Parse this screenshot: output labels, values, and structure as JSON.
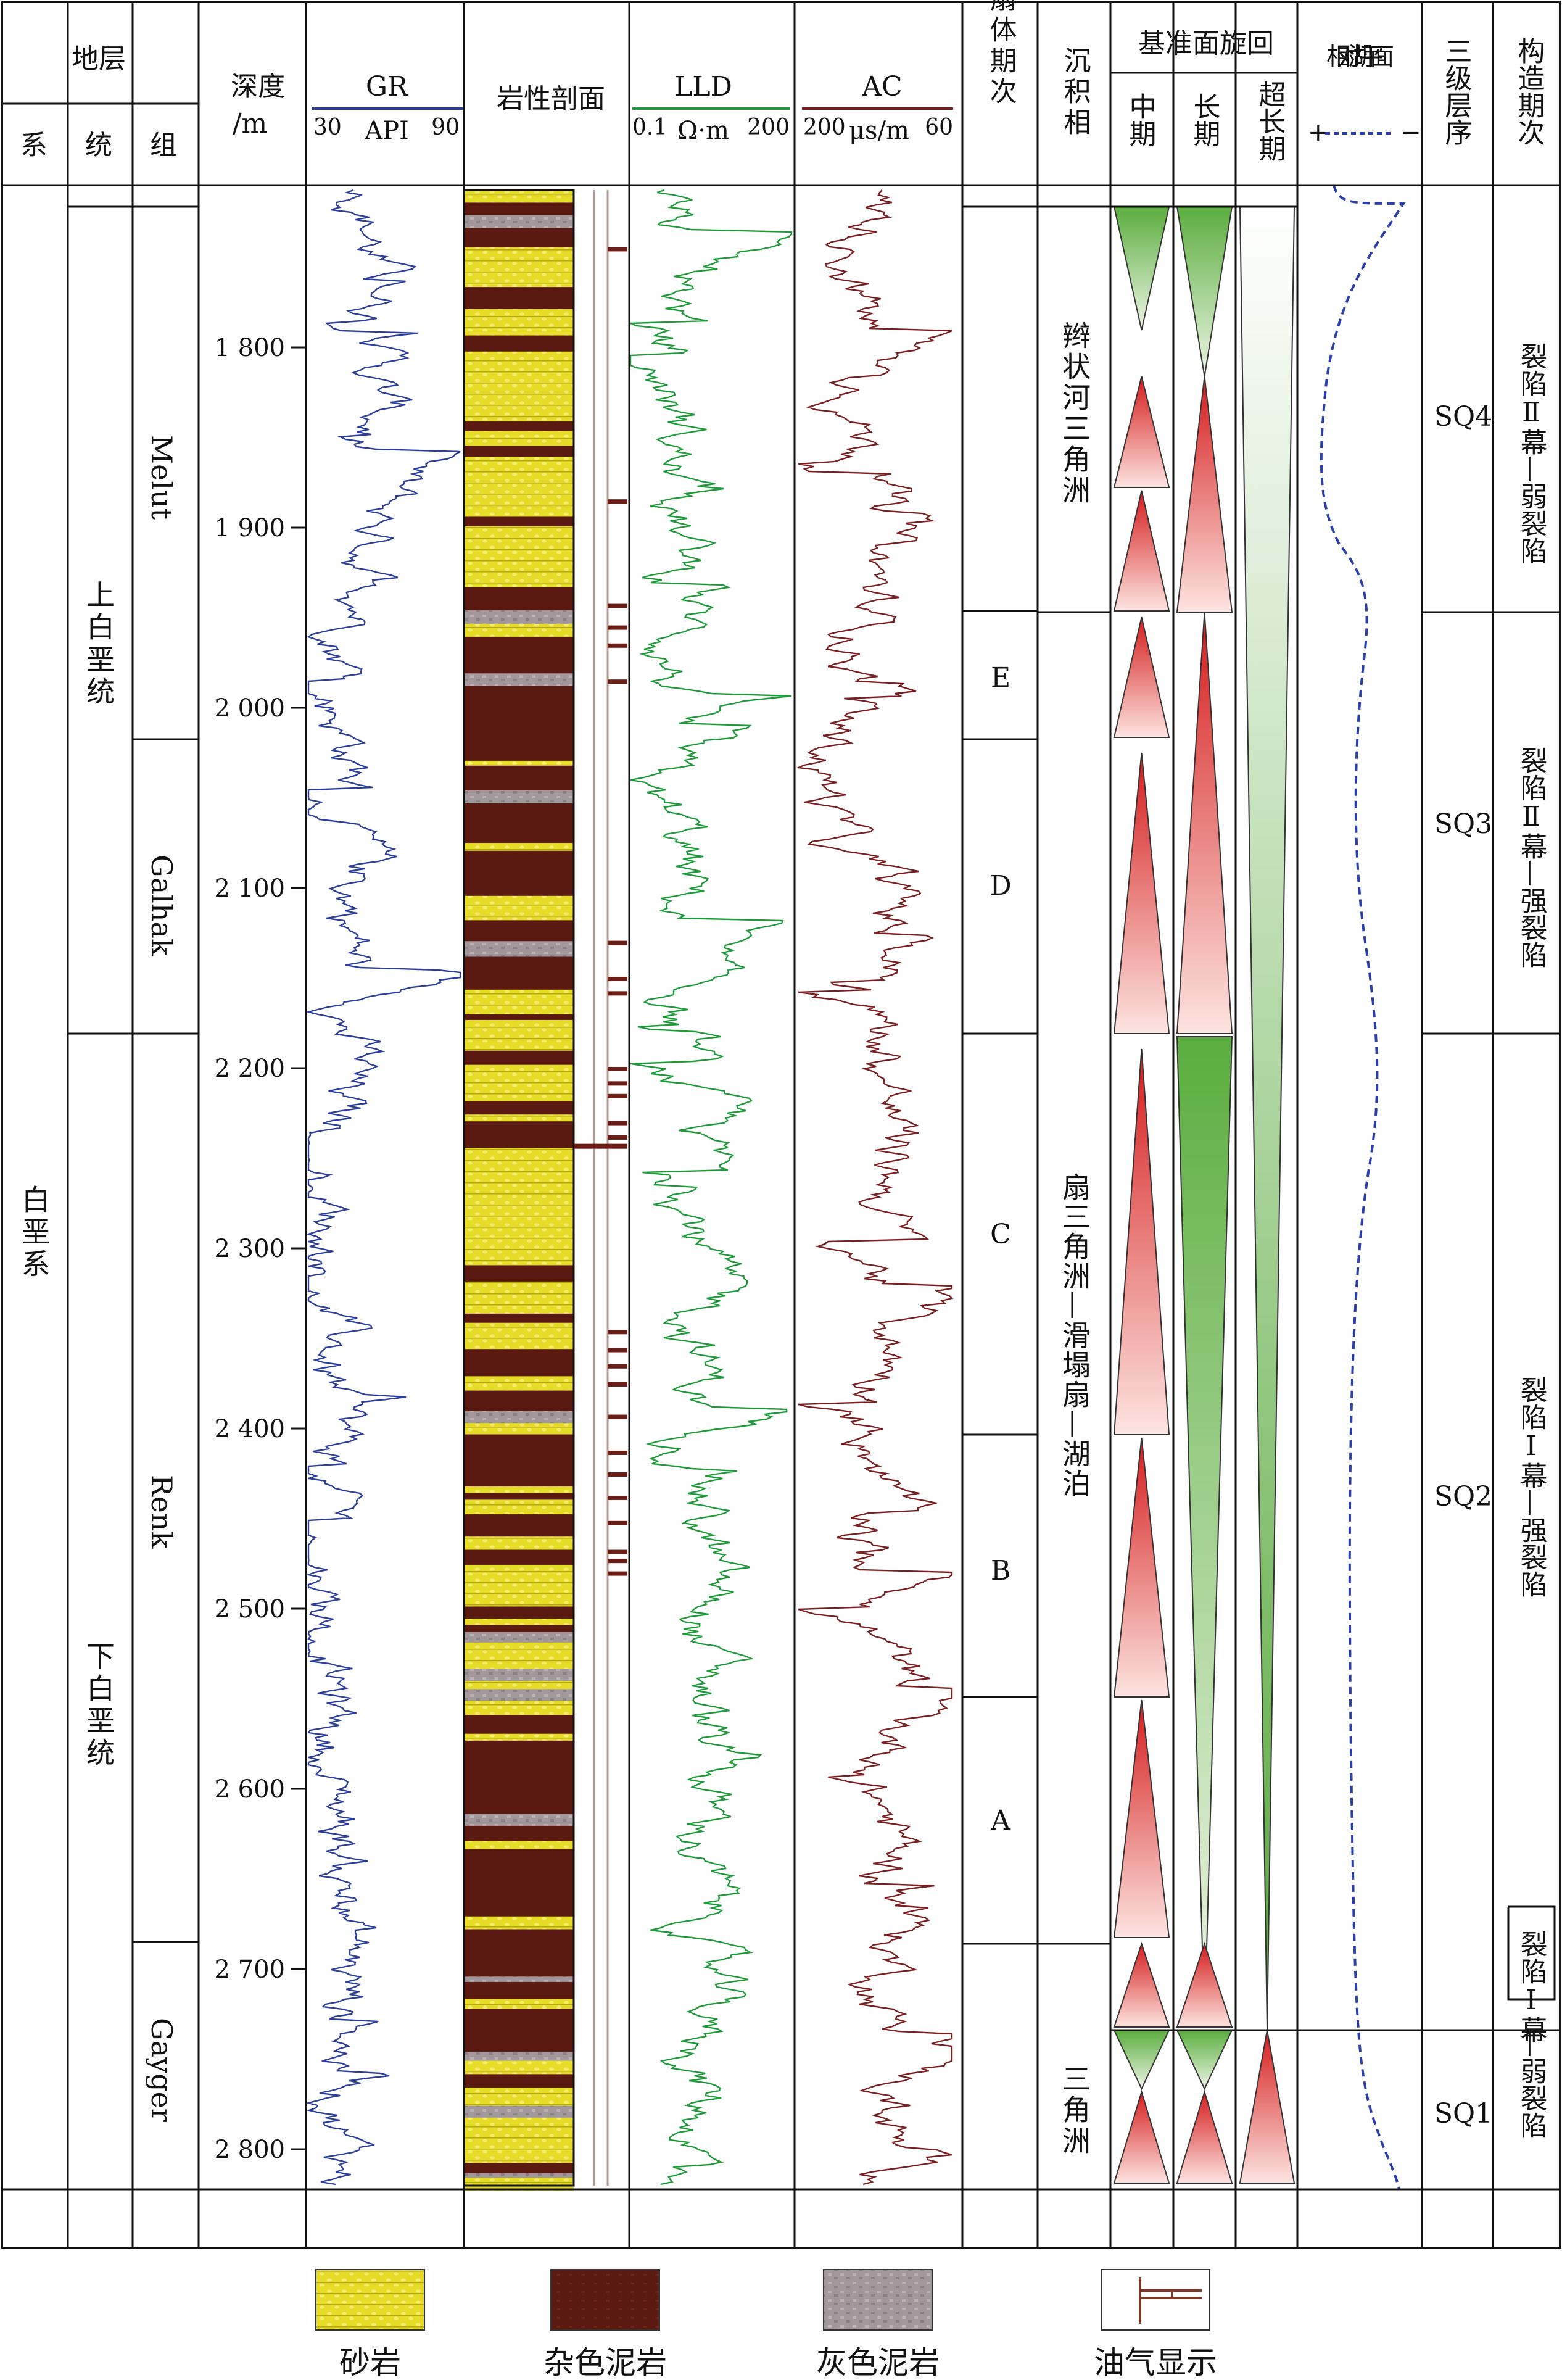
{
  "header": {
    "strata": "地层",
    "system": "系",
    "series": "统",
    "formation": "组",
    "depth_top": "深度",
    "depth_unit": "/m",
    "gr_name": "GR",
    "gr_left": "30",
    "gr_unit": "API",
    "gr_right": "90",
    "litho": "岩性剖面",
    "lld_name": "LLD",
    "lld_left": "0.1",
    "lld_unit": "Ω·m",
    "lld_right": "200",
    "ac_name": "AC",
    "ac_left": "200",
    "ac_unit": "μs/m",
    "ac_right": "60",
    "fan": "扇体期次",
    "facies": "沉积相",
    "baselevel": "基准面旋回",
    "mid": "中期",
    "long": "长期",
    "ultra": "超长期",
    "lake": "相对湖平面",
    "lake_plus": "+",
    "lake_minus": "−",
    "sequence": "三级层序",
    "tectonic": "构造期次"
  },
  "strat": {
    "system": "白垩系",
    "upper_series": "上白垩统",
    "lower_series": "下白垩统",
    "formations": [
      "Melut",
      "Galhak",
      "Renk",
      "Gayger"
    ]
  },
  "depth_ticks": [
    "1 800",
    "1 900",
    "2 000",
    "2 100",
    "2 200",
    "2 300",
    "2 400",
    "2 500",
    "2 600",
    "2 700",
    "2 800"
  ],
  "fan_stages": [
    "E",
    "D",
    "C",
    "B",
    "A"
  ],
  "facies": {
    "upper": "辫状河三角洲",
    "middle": "扇三角洲—滑塌扇—湖泊",
    "lower": "三角洲"
  },
  "sequences": [
    "SQ4",
    "SQ3",
    "SQ2",
    "SQ1"
  ],
  "tectonic": {
    "t4": "裂陷Ⅱ幕—弱裂陷",
    "t3": "裂陷Ⅱ幕—强裂陷",
    "t2": "裂陷Ⅰ幕—强裂陷",
    "t1a": "裂陷Ⅰ幕",
    "t1b": "—弱裂陷"
  },
  "legend": [
    "砂岩",
    "杂色泥岩",
    "灰色泥岩",
    "油气显示"
  ],
  "colors": {
    "gr": "#2b3f9a",
    "lld": "#1f9a3a",
    "ac": "#7a1f1f",
    "sand": "#e8de2a",
    "mud_var": "#5a1a12",
    "mud_grey": "#9a8d8c",
    "rise_red": "#d42020",
    "fall_green": "#4aa83a",
    "lake_line": "#2a3fa8"
  }
}
